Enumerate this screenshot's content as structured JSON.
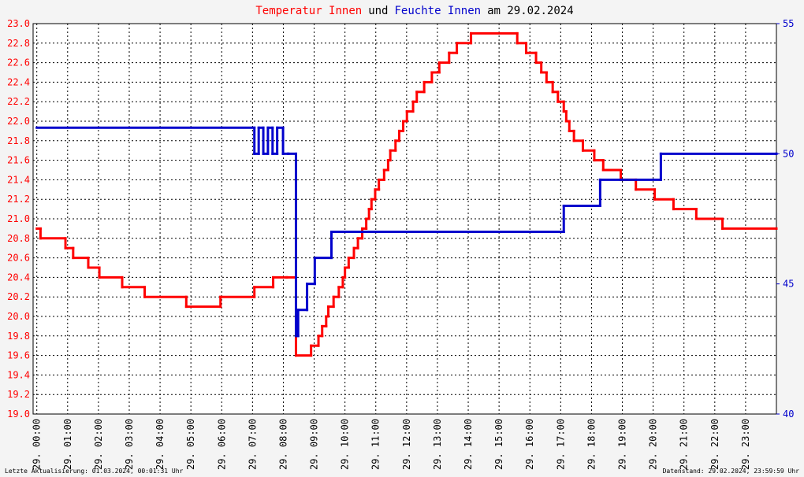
{
  "chart_data": {
    "type": "line",
    "step": true,
    "grid": true,
    "title_parts": [
      {
        "text": "Temperatur Innen",
        "color": "#ff0000"
      },
      {
        "text": "und",
        "color": "#000000"
      },
      {
        "text": "Feuchte Innen",
        "color": "#0000cc"
      },
      {
        "text": "am 29.02.2024",
        "color": "#000000"
      }
    ],
    "footer_left": "Letzte Aktualisierung: 01.03.2024, 00:01:31 Uhr",
    "footer_right": "Datenstand: 29.02.2024, 23:59:59 Uhr",
    "xlim": [
      -0.12,
      24
    ],
    "xticks": [
      {
        "value": 0,
        "label": "29. 00:00"
      },
      {
        "value": 1,
        "label": "29. 01:00"
      },
      {
        "value": 2,
        "label": "29. 02:00"
      },
      {
        "value": 3,
        "label": "29. 03:00"
      },
      {
        "value": 4,
        "label": "29. 04:00"
      },
      {
        "value": 5,
        "label": "29. 05:00"
      },
      {
        "value": 6,
        "label": "29. 06:00"
      },
      {
        "value": 7,
        "label": "29. 07:00"
      },
      {
        "value": 8,
        "label": "29. 08:00"
      },
      {
        "value": 9,
        "label": "29. 09:00"
      },
      {
        "value": 10,
        "label": "29. 10:00"
      },
      {
        "value": 11,
        "label": "29. 11:00"
      },
      {
        "value": 12,
        "label": "29. 12:00"
      },
      {
        "value": 13,
        "label": "29. 13:00"
      },
      {
        "value": 14,
        "label": "29. 14:00"
      },
      {
        "value": 15,
        "label": "29. 15:00"
      },
      {
        "value": 16,
        "label": "29. 16:00"
      },
      {
        "value": 17,
        "label": "29. 17:00"
      },
      {
        "value": 18,
        "label": "29. 18:00"
      },
      {
        "value": 19,
        "label": "29. 19:00"
      },
      {
        "value": 20,
        "label": "29. 20:00"
      },
      {
        "value": 21,
        "label": "29. 21:00"
      },
      {
        "value": 22,
        "label": "29. 22:00"
      },
      {
        "value": 23,
        "label": "29. 23:00"
      }
    ],
    "ylim": [
      19,
      23
    ],
    "yticks": [
      {
        "value": 19,
        "label": "19.0"
      },
      19.2,
      19.4,
      19.6,
      19.8,
      {
        "value": 20,
        "label": "20.0"
      },
      20.2,
      20.4,
      20.6,
      20.8,
      {
        "value": 21,
        "label": "21.0"
      },
      21.2,
      21.4,
      21.6,
      21.8,
      {
        "value": 22,
        "label": "22.0"
      },
      22.2,
      22.4,
      22.6,
      22.8,
      {
        "value": 23,
        "label": "23.0"
      }
    ],
    "y_color": "#ff0000",
    "y2lim": [
      40,
      55
    ],
    "y2ticks": [
      40,
      45,
      50,
      55
    ],
    "y2_color": "#0000cc",
    "series": [
      {
        "name": "Temperatur Innen",
        "color": "#ff0000",
        "x": [
          0,
          0.12,
          0.93,
          1.18,
          1.67,
          2.03,
          2.77,
          3.5,
          4.85,
          5.96,
          7.06,
          7.67,
          8.11,
          8.41,
          8.9,
          9.14,
          9.26,
          9.39,
          9.46,
          9.63,
          9.8,
          9.93,
          10.0,
          10.12,
          10.29,
          10.42,
          10.56,
          10.69,
          10.78,
          10.86,
          10.98,
          11.1,
          11.27,
          11.4,
          11.47,
          11.64,
          11.76,
          11.89,
          12.01,
          12.21,
          12.33,
          12.57,
          12.82,
          13.06,
          13.38,
          13.63,
          14.09,
          15.59,
          15.88,
          16.2,
          16.37,
          16.54,
          16.74,
          16.91,
          17.1,
          17.18,
          17.28,
          17.43,
          17.72,
          18.09,
          18.38,
          18.95,
          19.44,
          20.05,
          20.66,
          21.4,
          22.25,
          24
        ],
        "values": [
          20.9,
          20.8,
          20.7,
          20.6,
          20.5,
          20.4,
          20.3,
          20.2,
          20.1,
          20.2,
          20.3,
          20.4,
          20.4,
          19.6,
          19.7,
          19.8,
          19.9,
          20.0,
          20.1,
          20.2,
          20.3,
          20.4,
          20.5,
          20.6,
          20.7,
          20.8,
          20.9,
          21.0,
          21.1,
          21.2,
          21.3,
          21.4,
          21.5,
          21.6,
          21.7,
          21.8,
          21.9,
          22.0,
          22.1,
          22.2,
          22.3,
          22.4,
          22.5,
          22.6,
          22.7,
          22.8,
          22.9,
          22.8,
          22.7,
          22.6,
          22.5,
          22.4,
          22.3,
          22.2,
          22.1,
          22.0,
          21.9,
          21.8,
          21.7,
          21.6,
          21.5,
          21.4,
          21.3,
          21.2,
          21.1,
          21.0,
          20.9,
          20.9
        ]
      },
      {
        "name": "Feuchte Innen",
        "color": "#0000cc",
        "axis": "y2",
        "x": [
          0,
          7.06,
          7.2,
          7.35,
          7.5,
          7.65,
          7.8,
          7.99,
          8.16,
          8.41,
          8.48,
          8.77,
          9.02,
          9.56,
          17.1,
          18.28,
          20.25,
          24
        ],
        "values": [
          51,
          50,
          51,
          50,
          51,
          50,
          51,
          50,
          50,
          43,
          44,
          45,
          46,
          47,
          48,
          49,
          50,
          50
        ]
      }
    ]
  }
}
